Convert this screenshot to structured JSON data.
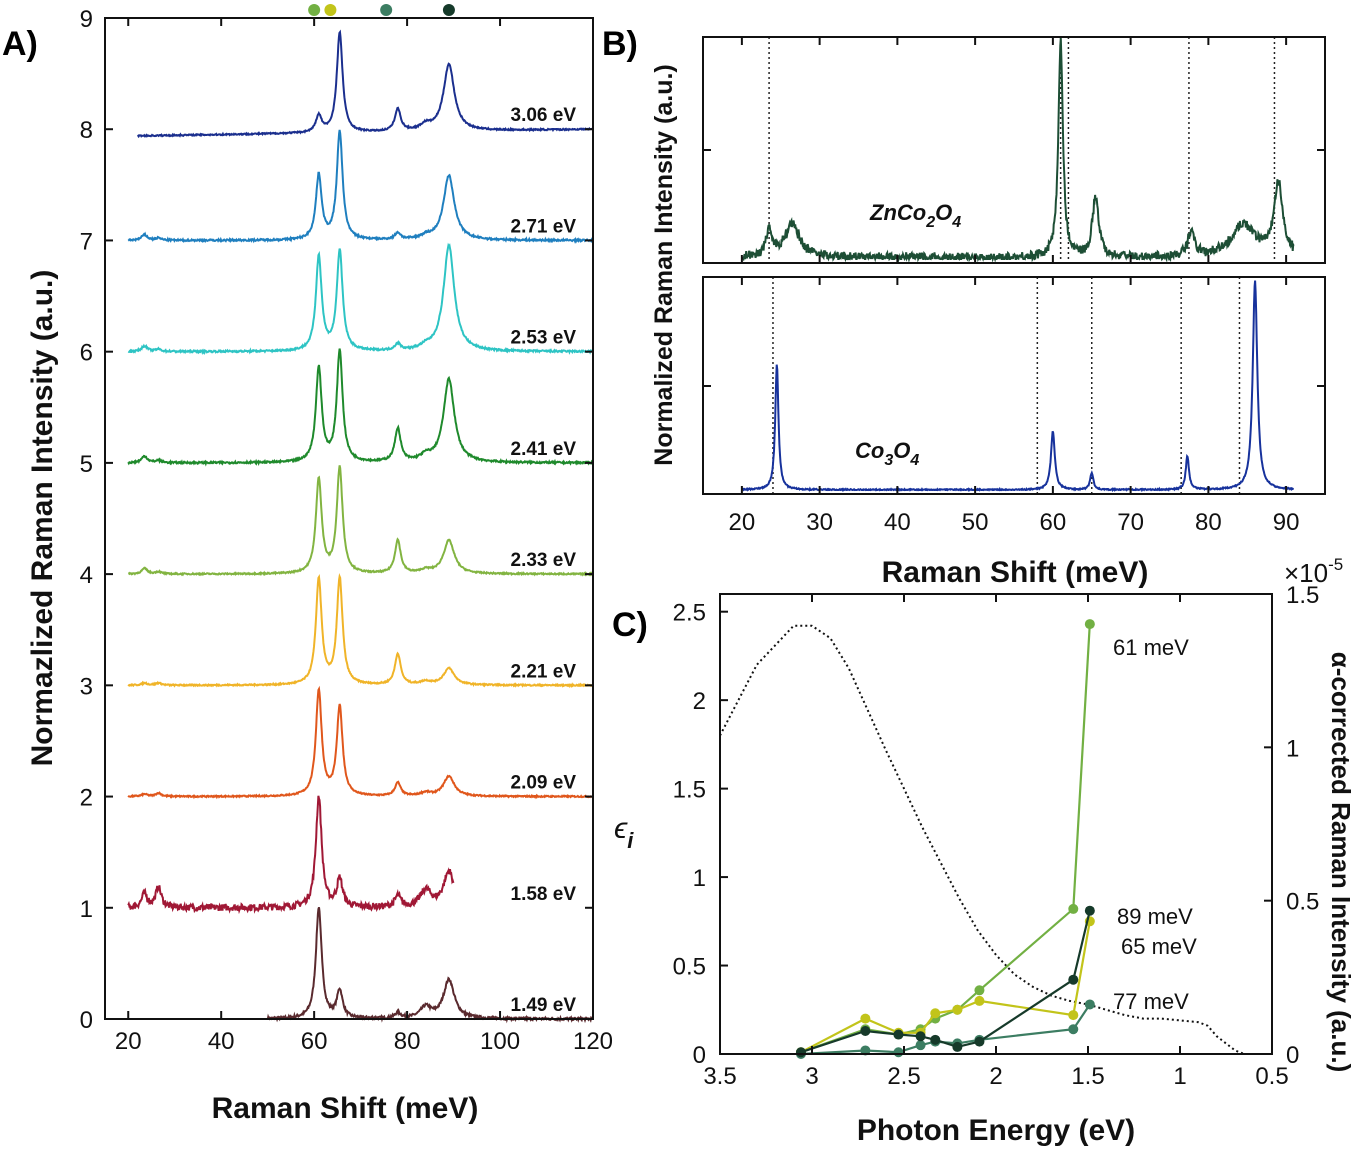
{
  "panels": {
    "A": {
      "label": "A)",
      "xlabel": "Raman Shift (meV)",
      "ylabel": "Normazlized Raman Intensity (a.u.)",
      "xticks": [
        "20",
        "40",
        "60",
        "80",
        "100",
        "120"
      ],
      "yticks": [
        "0",
        "1",
        "2",
        "3",
        "4",
        "5",
        "6",
        "7",
        "8",
        "9"
      ],
      "top_markers": [
        {
          "x": 60.0,
          "color": "#72b043"
        },
        {
          "x": 63.5,
          "color": "#c2c41a"
        },
        {
          "x": 75.5,
          "color": "#3c7d62"
        },
        {
          "x": 89.0,
          "color": "#163a2a"
        }
      ]
    },
    "B": {
      "label": "B)",
      "xlabel": "Raman Shift (meV)",
      "ylabel": "Normalized Raman Intensity (a.u.)",
      "xticks": [
        "20",
        "30",
        "40",
        "50",
        "60",
        "70",
        "80",
        "90"
      ],
      "top_sample": {
        "main": "ZnCo",
        "sub1": "2",
        "mid": "O",
        "sub2": "4"
      },
      "bottom_sample": {
        "main": "Co",
        "sub1": "3",
        "mid": "O",
        "sub2": "4"
      }
    },
    "C": {
      "label": "C)",
      "xlabel": "Photon Energy (eV)",
      "ylabel_left_symbol": "ϵ",
      "ylabel_left_sub": "i",
      "ylabel_right": "α-corrected Raman Intensity (a.u.)",
      "right_multiplier_base": "×10",
      "right_multiplier_exp": "-5",
      "xticks": [
        "3.5",
        "3",
        "2.5",
        "2",
        "1.5",
        "1",
        "0.5"
      ],
      "yticks_left": [
        "0",
        "0.5",
        "1",
        "1.5",
        "2",
        "2.5"
      ],
      "yticks_right": [
        "0",
        "0.5",
        "1",
        "1.5"
      ]
    }
  },
  "chart_data": [
    {
      "type": "line",
      "panel": "A",
      "xlabel": "Raman Shift (meV)",
      "ylabel": "Normazlized Raman Intensity (a.u.)",
      "xlim": [
        15,
        120
      ],
      "ylim": [
        0,
        9
      ],
      "peaks": [
        23.5,
        26.5,
        61,
        65.5,
        78,
        84,
        89
      ],
      "series": [
        {
          "name": "1.49 eV",
          "offset": 0,
          "color": "#5a2a2e",
          "x_range": [
            50,
            120
          ],
          "heights": [
            0,
            0,
            1.0,
            0.25,
            0.05,
            0.1,
            0.35
          ],
          "noise": 0.012
        },
        {
          "name": "1.58 eV",
          "offset": 1,
          "color": "#a01835",
          "x_range": [
            20,
            90
          ],
          "heights": [
            0.12,
            0.18,
            1.0,
            0.25,
            0.1,
            0.15,
            0.32
          ],
          "noise": 0.03
        },
        {
          "name": "2.09 eV",
          "offset": 2,
          "color": "#e0571c",
          "x_range": [
            20,
            120
          ],
          "heights": [
            0.02,
            0.03,
            0.95,
            0.8,
            0.12,
            0.03,
            0.18
          ],
          "noise": 0.006
        },
        {
          "name": "2.21 eV",
          "offset": 3,
          "color": "#f0b429",
          "x_range": [
            20,
            120
          ],
          "heights": [
            0.02,
            0.02,
            0.95,
            0.95,
            0.28,
            0.03,
            0.15
          ],
          "noise": 0.006
        },
        {
          "name": "2.33 eV",
          "offset": 4,
          "color": "#82b441",
          "x_range": [
            20,
            120
          ],
          "heights": [
            0.05,
            0.02,
            0.85,
            0.95,
            0.3,
            0.03,
            0.3
          ],
          "noise": 0.006
        },
        {
          "name": "2.41 eV",
          "offset": 5,
          "color": "#1f8a2c",
          "x_range": [
            20,
            120
          ],
          "heights": [
            0.06,
            0.02,
            0.85,
            1.0,
            0.3,
            0.05,
            0.75
          ],
          "noise": 0.008
        },
        {
          "name": "2.53 eV",
          "offset": 6,
          "color": "#2ec4c4",
          "x_range": [
            20,
            120
          ],
          "heights": [
            0.05,
            0.02,
            0.85,
            0.9,
            0.06,
            0.03,
            0.95
          ],
          "noise": 0.008
        },
        {
          "name": "2.71 eV",
          "offset": 7,
          "color": "#1f7fbf",
          "x_range": [
            20,
            120
          ],
          "heights": [
            0.05,
            0.02,
            0.58,
            0.97,
            0.06,
            0.03,
            0.58
          ],
          "noise": 0.008
        },
        {
          "name": "3.06 eV",
          "offset": 8,
          "color": "#1b2f8e",
          "x_range": [
            22,
            120
          ],
          "heights": [
            0,
            0,
            0.15,
            0.9,
            0.2,
            0.05,
            0.6
          ],
          "noise": 0.006,
          "baseline_start": -0.06
        }
      ]
    },
    {
      "type": "line",
      "panel": "B-top",
      "xlim": [
        15,
        95
      ],
      "ylim": [
        0,
        1
      ],
      "series": [
        {
          "name": "ZnCo2O4",
          "color": "#1d4e35",
          "x_range": [
            20,
            91
          ],
          "peaks": [
            23.5,
            26.5,
            61,
            65.5,
            77.8,
            84.5,
            89
          ],
          "heights": [
            0.12,
            0.15,
            1.0,
            0.28,
            0.12,
            0.15,
            0.33
          ],
          "noise": 0.02
        }
      ],
      "reference_lines": [
        23.5,
        61,
        62,
        77.5,
        88.5
      ]
    },
    {
      "type": "line",
      "panel": "B-bottom",
      "xlim": [
        15,
        95
      ],
      "ylim": [
        0,
        1
      ],
      "series": [
        {
          "name": "Co3O4",
          "color": "#17329c",
          "x_range": [
            20,
            91
          ],
          "peaks": [
            24.5,
            60,
            65,
            77.3,
            86
          ],
          "heights": [
            0.6,
            0.28,
            0.08,
            0.16,
            1.0
          ],
          "noise": 0.003
        }
      ],
      "reference_lines": [
        24,
        58,
        65,
        76.5,
        84
      ]
    },
    {
      "type": "line",
      "panel": "C",
      "xlabel": "Photon Energy (eV)",
      "xlim": [
        3.5,
        0.5
      ],
      "ylim_left": [
        0,
        2.6
      ],
      "ylim_right": [
        0,
        1.5
      ],
      "dotted_curve": {
        "axis": "left",
        "x": [
          3.5,
          3.3,
          3.1,
          3.0,
          2.9,
          2.8,
          2.7,
          2.6,
          2.5,
          2.4,
          2.3,
          2.2,
          2.1,
          2.0,
          1.9,
          1.8,
          1.7,
          1.6,
          1.5,
          1.4,
          1.3,
          1.2,
          1.1,
          1.0,
          0.9,
          0.85,
          0.8,
          0.7,
          0.65
        ],
        "y": [
          1.8,
          2.2,
          2.42,
          2.42,
          2.35,
          2.18,
          1.95,
          1.72,
          1.5,
          1.28,
          1.08,
          0.88,
          0.7,
          0.56,
          0.45,
          0.38,
          0.33,
          0.3,
          0.28,
          0.25,
          0.22,
          0.2,
          0.2,
          0.19,
          0.18,
          0.16,
          0.1,
          0.02,
          0.0
        ]
      },
      "series": [
        {
          "name": "61 meV",
          "color": "#72b043",
          "x": [
            3.06,
            2.71,
            2.53,
            2.41,
            2.33,
            2.21,
            2.09,
            1.58,
            1.49
          ],
          "y": [
            0.01,
            0.14,
            0.11,
            0.14,
            0.2,
            0.25,
            0.36,
            0.82,
            2.43
          ]
        },
        {
          "name": "65 meV",
          "color": "#c2c41a",
          "x": [
            3.06,
            2.71,
            2.53,
            2.41,
            2.33,
            2.21,
            2.09,
            1.58,
            1.49
          ],
          "y": [
            0.01,
            0.2,
            0.12,
            0.12,
            0.23,
            0.25,
            0.3,
            0.22,
            0.75
          ]
        },
        {
          "name": "77 meV",
          "color": "#3c7d62",
          "x": [
            3.06,
            2.71,
            2.53,
            2.41,
            2.33,
            2.21,
            2.09,
            1.58,
            1.49
          ],
          "y": [
            0.0,
            0.02,
            0.01,
            0.05,
            0.07,
            0.06,
            0.08,
            0.14,
            0.28
          ]
        },
        {
          "name": "89 meV",
          "color": "#163a2a",
          "x": [
            3.06,
            2.71,
            2.53,
            2.41,
            2.33,
            2.21,
            2.09,
            1.58,
            1.49
          ],
          "y": [
            0.01,
            0.13,
            0.11,
            0.1,
            0.08,
            0.04,
            0.07,
            0.42,
            0.81
          ]
        }
      ]
    }
  ]
}
